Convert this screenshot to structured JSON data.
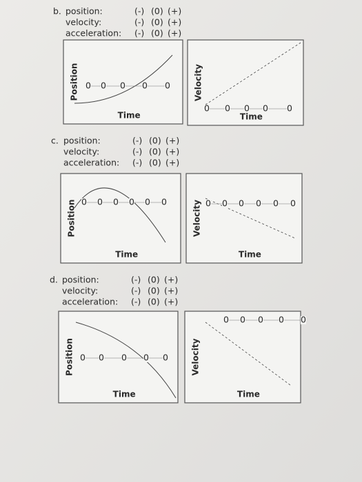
{
  "sections": [
    {
      "letter": "b.",
      "rows": [
        {
          "label": "position:",
          "options": [
            "(-)",
            "(0)",
            "(+)"
          ]
        },
        {
          "label": "velocity:",
          "options": [
            "(-)",
            "(0)",
            "(+)"
          ]
        },
        {
          "label": "acceleration:",
          "options": [
            "(-)",
            "(0)",
            "(+)"
          ]
        }
      ],
      "graphs": [
        {
          "y_label": "Position",
          "x_label": "Time",
          "zeros": [
            "0",
            "0",
            "0",
            "0",
            "0"
          ]
        },
        {
          "y_label": "Velocity",
          "x_label": "Time",
          "zeros": [
            "0",
            "0",
            "0",
            "0",
            "0"
          ]
        }
      ]
    },
    {
      "letter": "c.",
      "rows": [
        {
          "label": "position:",
          "options": [
            "(-)",
            "(0)",
            "(+)"
          ]
        },
        {
          "label": "velocity:",
          "options": [
            "(-)",
            "(0)",
            "(+)"
          ]
        },
        {
          "label": "acceleration:",
          "options": [
            "(-)",
            "(0)",
            "(+)"
          ]
        }
      ],
      "graphs": [
        {
          "y_label": "Position",
          "x_label": "Time",
          "zeros": [
            "0",
            "0",
            "0",
            "0",
            "0",
            "0"
          ]
        },
        {
          "y_label": "Velocity",
          "x_label": "Time",
          "zeros": [
            "0",
            "0",
            "0",
            "0",
            "0",
            "0"
          ]
        }
      ]
    },
    {
      "letter": "d.",
      "rows": [
        {
          "label": "position:",
          "options": [
            "(-)",
            "(0)",
            "(+)"
          ]
        },
        {
          "label": "velocity:",
          "options": [
            "(-)",
            "(0)",
            "(+)"
          ]
        },
        {
          "label": "acceleration:",
          "options": [
            "(-)",
            "(0)",
            "(+)"
          ]
        }
      ],
      "graphs": [
        {
          "y_label": "Position",
          "x_label": "Time",
          "zeros": [
            "0",
            "0",
            "0",
            "0",
            "0"
          ]
        },
        {
          "y_label": "Velocity",
          "x_label": "Time",
          "zeros": [
            "0",
            "0",
            "0",
            "0",
            "0"
          ]
        }
      ]
    }
  ]
}
